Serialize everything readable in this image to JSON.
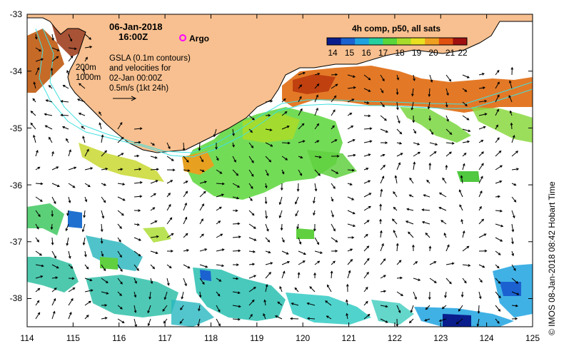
{
  "header": {
    "date": "06-Jan-2018",
    "time": "16:00Z",
    "argo_label": "Argo",
    "notes": [
      "GSLA (0.1m contours)",
      "and velocities for",
      "02-Jan 00:00Z",
      "0.5m/s (1kt 24h)"
    ],
    "depth_labels": [
      "200m",
      "1000m"
    ]
  },
  "colorbar": {
    "title": "4h comp, p50, all sats",
    "ticks": [
      "14",
      "15",
      "16",
      "17",
      "18",
      "19",
      "20",
      "21",
      "22"
    ],
    "colors": [
      "#0a1d8c",
      "#1b62d0",
      "#1fa3e0",
      "#26cfa0",
      "#5ad63a",
      "#a8dc2a",
      "#e8e020",
      "#f0a020",
      "#e05010",
      "#a01010"
    ]
  },
  "axes": {
    "x_ticks": [
      "114",
      "115",
      "116",
      "117",
      "118",
      "119",
      "120",
      "121",
      "122",
      "123",
      "124",
      "125"
    ],
    "y_ticks": [
      "-33",
      "-34",
      "-35",
      "-36",
      "-37",
      "-38"
    ]
  },
  "credit": "© IMOS 08-Jan-2018 08:42 Hobart Time",
  "colors": {
    "land": "#f8c090",
    "contour": "#40e0e0",
    "argo": "#ff00ff"
  }
}
